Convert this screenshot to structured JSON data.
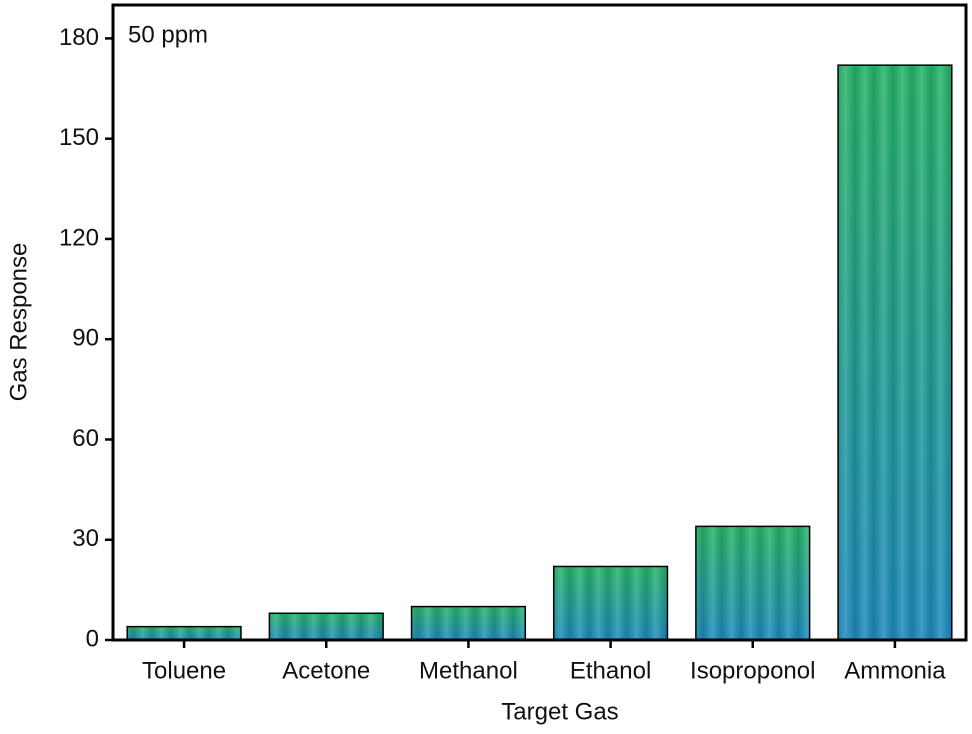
{
  "chart_data": {
    "type": "bar",
    "annotation": "50 ppm",
    "x_label": "Target Gas",
    "y_label": "Gas Response",
    "categories": [
      "Toluene",
      "Acetone",
      "Methanol",
      "Ethanol",
      "Isoproponol",
      "Ammonia"
    ],
    "values": [
      4,
      8,
      10,
      22,
      34,
      172
    ],
    "color": "#1d9a9a",
    "ylim": [
      0,
      190
    ],
    "yticks": [
      0,
      30,
      60,
      90,
      120,
      150,
      180
    ]
  }
}
